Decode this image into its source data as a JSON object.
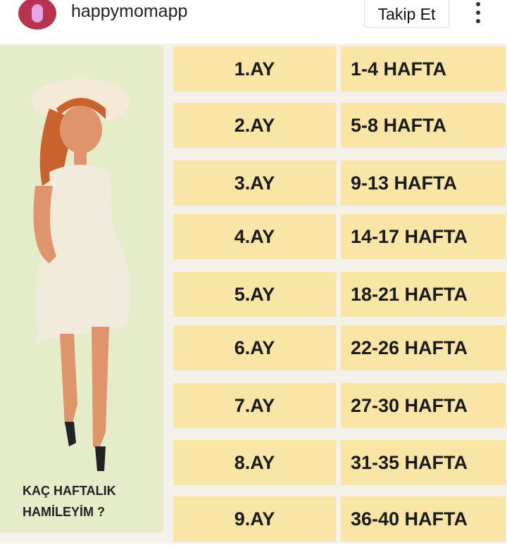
{
  "header": {
    "username": "happymomapp",
    "follow_label": "Takip Et"
  },
  "post": {
    "question_line1": "KAÇ HAFTALIK",
    "question_line2": "HAMİLEYİM ?",
    "rows": [
      {
        "month": "1.AY",
        "weeks": "1-4 HAFTA"
      },
      {
        "month": "2.AY",
        "weeks": "5-8 HAFTA"
      },
      {
        "month": "3.AY",
        "weeks": "9-13 HAFTA"
      },
      {
        "month": "4.AY",
        "weeks": "14-17 HAFTA"
      },
      {
        "month": "5.AY",
        "weeks": "18-21 HAFTA"
      },
      {
        "month": "6.AY",
        "weeks": "22-26 HAFTA"
      },
      {
        "month": "7.AY",
        "weeks": "27-30 HAFTA"
      },
      {
        "month": "8.AY",
        "weeks": "31-35 HAFTA"
      },
      {
        "month": "9.AY",
        "weeks": "36-40 HAFTA"
      }
    ]
  },
  "colors": {
    "cell": "#f9e6a6",
    "panel": "#e4ecc9",
    "avatar": "#b8334f"
  }
}
